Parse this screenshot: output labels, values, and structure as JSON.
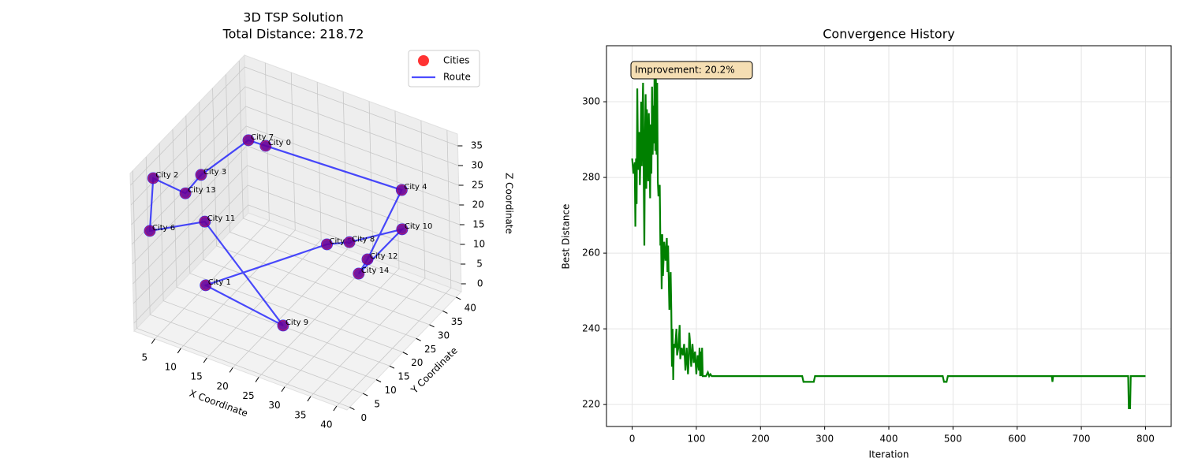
{
  "chart_data": [
    {
      "type": "scatter3d",
      "title": "3D TSP Solution",
      "subtitle": "Total Distance: 218.72",
      "xlabel": "X Coordinate",
      "ylabel": "Y Coordinate",
      "zlabel": "Z Coordinate",
      "xlim": [
        1,
        42
      ],
      "ylim": [
        -1,
        42
      ],
      "zlim": [
        -2,
        38
      ],
      "xticks": [
        5,
        10,
        15,
        20,
        25,
        30,
        35,
        40
      ],
      "yticks": [
        0,
        5,
        10,
        15,
        20,
        25,
        30,
        35,
        40
      ],
      "zticks": [
        0,
        5,
        10,
        15,
        20,
        25,
        30,
        35
      ],
      "legend": "upper right",
      "grid": true,
      "series": [
        {
          "name": "Cities",
          "color": "#ff0000",
          "labels": [
            "City 0",
            "City 1",
            "City 2",
            "City 3",
            "City 4",
            "City 5",
            "City 6",
            "City 7",
            "City 8",
            "City 9",
            "City 10",
            "City 11",
            "City 12",
            "City 13",
            "City 14"
          ],
          "x": [
            13.1,
            9.3,
            2.7,
            4.6,
            31.8,
            23.1,
            2.8,
            11.0,
            26.0,
            25.8,
            32.8,
            6.0,
            29.8,
            3.8,
            29.4
          ],
          "y": [
            26.1,
            10.0,
            4.2,
            18.2,
            40.3,
            28.8,
            2.3,
            23.8,
            31.6,
            6.9,
            38.2,
            16.5,
            30.9,
            13.8,
            28.3
          ],
          "z": [
            32,
            6,
            34,
            26,
            20,
            10,
            22,
            34,
            10,
            6,
            12,
            16,
            8,
            24,
            6
          ]
        },
        {
          "name": "Route",
          "color": "#0000ff",
          "route": [
            0,
            7,
            3,
            13,
            2,
            6,
            11,
            9,
            1,
            5,
            8,
            10,
            14,
            12,
            4
          ]
        }
      ]
    },
    {
      "type": "line",
      "title": "Convergence History",
      "xlabel": "Iteration",
      "ylabel": "Best Distance",
      "color": "#008000",
      "grid": true,
      "annotation": "Improvement: 20.2%",
      "xlim": [
        -40,
        840
      ],
      "ylim": [
        214.2,
        314.8
      ],
      "xticks": [
        0,
        100,
        200,
        300,
        400,
        500,
        600,
        700,
        800
      ],
      "yticks": [
        220,
        240,
        260,
        280,
        300
      ],
      "x": [
        0,
        2,
        4,
        5,
        6,
        7,
        8,
        9,
        10,
        11,
        12,
        13,
        14,
        15,
        16,
        17,
        18,
        19,
        20,
        21,
        22,
        23,
        24,
        25,
        26,
        27,
        28,
        29,
        30,
        31,
        32,
        33,
        34,
        35,
        36,
        37,
        38,
        39,
        40,
        41,
        42,
        43,
        44,
        45,
        46,
        47,
        48,
        50,
        52,
        54,
        55,
        56,
        58,
        60,
        61,
        62,
        63,
        64,
        65,
        67,
        69,
        70,
        72,
        74,
        75,
        77,
        79,
        81,
        83,
        85,
        87,
        88,
        89,
        90,
        92,
        94,
        96,
        98,
        100,
        102,
        104,
        105,
        106,
        107,
        108,
        109,
        110,
        115,
        118,
        120,
        122,
        124,
        265,
        267,
        283,
        285,
        484,
        486,
        490,
        492,
        654,
        655,
        656,
        773,
        774,
        776,
        777,
        800
      ],
      "values": [
        285,
        281,
        284,
        267,
        285,
        273,
        303.5,
        287,
        282,
        292,
        278,
        285,
        300,
        283,
        296,
        305,
        280,
        262,
        290,
        302,
        277,
        298,
        286,
        279,
        297,
        287,
        274.5,
        294,
        281,
        304,
        286,
        299,
        289,
        310,
        287,
        306,
        286,
        305,
        279,
        275,
        277,
        278,
        262,
        265,
        250.5,
        265,
        254,
        263,
        258,
        264,
        255,
        262,
        245,
        255,
        245,
        230,
        240,
        226.5,
        236,
        235,
        240,
        233,
        235,
        241,
        232,
        235,
        233,
        236,
        229,
        235,
        228,
        231,
        239,
        237,
        230,
        236,
        231,
        234,
        228,
        233,
        229,
        235,
        227.5,
        234,
        227.5,
        235,
        227.5,
        227.5,
        228.5,
        227.5,
        228,
        227.5,
        227.5,
        226,
        226,
        227.5,
        227.5,
        226,
        226,
        227.5,
        227.5,
        226,
        227.5,
        227.5,
        219,
        219,
        227.5,
        227.5
      ]
    }
  ]
}
